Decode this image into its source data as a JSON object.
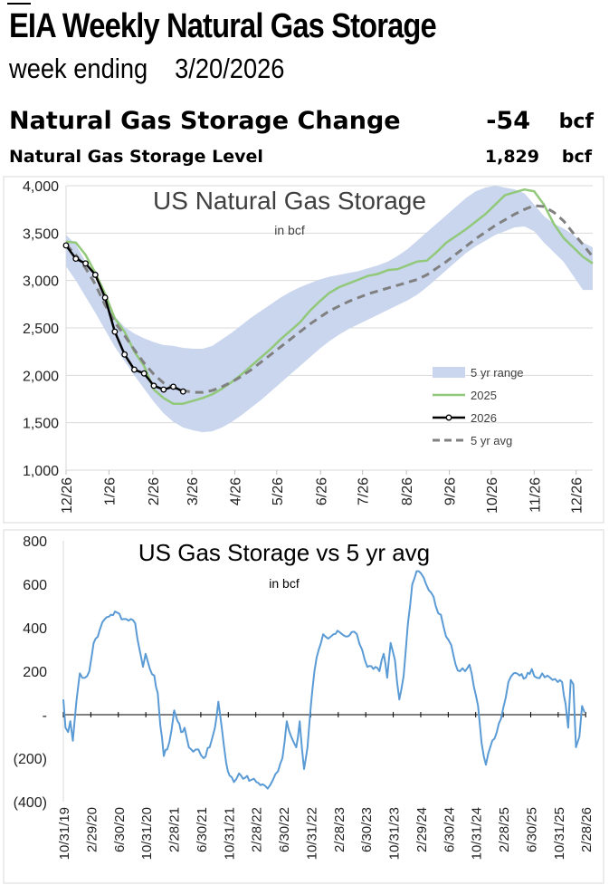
{
  "header": {
    "title": "EIA Weekly Natural Gas Storage",
    "week_label": "week ending",
    "week_date": "3/20/2026"
  },
  "summary": {
    "change_label": "Natural Gas Storage Change",
    "change_value": "-54",
    "change_unit": "bcf",
    "level_label": "Natural Gas Storage Level",
    "level_value": "1,829",
    "level_unit": "bcf"
  },
  "colors": {
    "range_fill": "#c9d6ee",
    "line_2025": "#92c87a",
    "line_2026": "#000000",
    "line_avg": "#808080",
    "line_diff": "#5b9bd5",
    "grid": "#d9d9d9"
  },
  "chart_data": [
    {
      "type": "line",
      "title": "US Natural Gas Storage",
      "subtitle": "in bcf",
      "legend_position": "right",
      "ylim": [
        1000,
        4000
      ],
      "yticks": [
        "1,000",
        "1,500",
        "2,000",
        "2,500",
        "3,000",
        "3,500",
        "4,000"
      ],
      "xlim_weeks": [
        0,
        54
      ],
      "xticks": [
        "12/26",
        "1/26",
        "2/26",
        "3/26",
        "4/26",
        "5/26",
        "6/26",
        "7/26",
        "8/26",
        "9/26",
        "10/26",
        "11/26",
        "12/26"
      ],
      "xtick_weeks": [
        0,
        4.4,
        8.9,
        12.9,
        17.3,
        21.6,
        26.1,
        30.4,
        34.9,
        39.3,
        43.6,
        48.0,
        52.3
      ],
      "series": [
        {
          "name": "5 yr range",
          "kind": "band",
          "weeks": [
            0,
            1,
            2,
            3,
            4,
            5,
            6,
            7,
            8,
            9,
            10,
            11,
            12,
            13,
            14,
            15,
            16,
            17,
            18,
            19,
            20,
            21,
            22,
            23,
            24,
            25,
            26,
            27,
            28,
            29,
            30,
            31,
            32,
            33,
            34,
            35,
            36,
            37,
            38,
            39,
            40,
            41,
            42,
            43,
            44,
            45,
            46,
            47,
            48,
            49,
            50,
            51,
            52,
            53,
            54
          ],
          "low": [
            3150,
            3000,
            2830,
            2660,
            2480,
            2300,
            2150,
            2000,
            1860,
            1720,
            1600,
            1510,
            1450,
            1420,
            1400,
            1410,
            1450,
            1510,
            1580,
            1660,
            1740,
            1830,
            1920,
            2010,
            2100,
            2190,
            2280,
            2360,
            2430,
            2490,
            2540,
            2590,
            2640,
            2690,
            2740,
            2790,
            2850,
            2930,
            3020,
            3110,
            3200,
            3290,
            3360,
            3420,
            3480,
            3520,
            3560,
            3570,
            3520,
            3400,
            3300,
            3200,
            3050,
            2900,
            2900
          ],
          "high": [
            3480,
            3380,
            3200,
            3000,
            2800,
            2620,
            2510,
            2440,
            2390,
            2350,
            2320,
            2310,
            2290,
            2280,
            2280,
            2310,
            2380,
            2450,
            2530,
            2610,
            2680,
            2750,
            2820,
            2880,
            2930,
            2970,
            3010,
            3040,
            3060,
            3080,
            3100,
            3130,
            3160,
            3200,
            3260,
            3330,
            3420,
            3510,
            3600,
            3690,
            3780,
            3870,
            3940,
            3980,
            4000,
            3980,
            3960,
            3920,
            3800,
            3680,
            3600,
            3550,
            3480,
            3400,
            3350
          ]
        },
        {
          "name": "2025",
          "kind": "line",
          "weeks": [
            0,
            1,
            2,
            3,
            4,
            5,
            6,
            7,
            8,
            9,
            10,
            11,
            12,
            13,
            14,
            15,
            16,
            17,
            18,
            19,
            20,
            21,
            22,
            23,
            24,
            25,
            26,
            27,
            28,
            29,
            30,
            31,
            32,
            33,
            34,
            35,
            36,
            37,
            38,
            39,
            40,
            41,
            42,
            43,
            44,
            45,
            46,
            47,
            48,
            49,
            50,
            51,
            52,
            53,
            54
          ],
          "values": [
            3410,
            3400,
            3270,
            3080,
            2860,
            2600,
            2460,
            2250,
            2100,
            1850,
            1760,
            1700,
            1700,
            1730,
            1760,
            1800,
            1860,
            1930,
            2010,
            2100,
            2190,
            2280,
            2380,
            2470,
            2560,
            2680,
            2780,
            2870,
            2930,
            2970,
            3010,
            3050,
            3070,
            3110,
            3120,
            3160,
            3200,
            3210,
            3300,
            3400,
            3470,
            3540,
            3620,
            3700,
            3800,
            3900,
            3930,
            3960,
            3940,
            3800,
            3600,
            3450,
            3350,
            3250,
            3180
          ]
        },
        {
          "name": "2026",
          "kind": "line-marker",
          "weeks": [
            0,
            1,
            2,
            3,
            4,
            5,
            6,
            7,
            8,
            9,
            10,
            11,
            12
          ],
          "values": [
            3370,
            3230,
            3180,
            3060,
            2820,
            2460,
            2220,
            2060,
            2020,
            1890,
            1850,
            1880,
            1829
          ]
        },
        {
          "name": "5 yr avg",
          "kind": "dashed",
          "weeks": [
            0,
            1,
            2,
            3,
            4,
            5,
            6,
            7,
            8,
            9,
            10,
            11,
            12,
            13,
            14,
            15,
            16,
            17,
            18,
            19,
            20,
            21,
            22,
            23,
            24,
            25,
            26,
            27,
            28,
            29,
            30,
            31,
            32,
            33,
            34,
            35,
            36,
            37,
            38,
            39,
            40,
            41,
            42,
            43,
            44,
            45,
            46,
            47,
            48,
            49,
            50,
            51,
            52,
            53,
            54
          ],
          "values": [
            3380,
            3270,
            3130,
            2960,
            2740,
            2560,
            2420,
            2270,
            2130,
            2010,
            1920,
            1870,
            1840,
            1820,
            1820,
            1840,
            1880,
            1930,
            1990,
            2060,
            2140,
            2220,
            2300,
            2380,
            2460,
            2540,
            2610,
            2680,
            2730,
            2780,
            2820,
            2860,
            2890,
            2920,
            2950,
            2980,
            3010,
            3060,
            3130,
            3200,
            3280,
            3360,
            3440,
            3510,
            3580,
            3640,
            3700,
            3750,
            3790,
            3780,
            3720,
            3630,
            3500,
            3380,
            3250
          ]
        }
      ]
    },
    {
      "type": "line",
      "title": "US Gas Storage vs 5 yr avg",
      "subtitle": "in bcf",
      "ylim": [
        -400,
        800
      ],
      "yticks": [
        "(400)",
        "(200)",
        "-",
        "200",
        "400",
        "600",
        "800"
      ],
      "xticks": [
        "10/31/19",
        "2/29/20",
        "6/30/20",
        "10/31/20",
        "2/28/21",
        "6/30/21",
        "10/31/21",
        "2/28/22",
        "6/30/22",
        "10/31/22",
        "2/28/23",
        "6/30/23",
        "10/31/23",
        "2/29/24",
        "6/30/24",
        "10/31/24",
        "2/28/25",
        "6/30/25",
        "10/31/25",
        "2/28/26"
      ],
      "series": [
        {
          "name": "",
          "points": [
            [
              0,
              70
            ],
            [
              0.25,
              -60
            ],
            [
              0.55,
              -80
            ],
            [
              0.8,
              -30
            ],
            [
              1.1,
              -120
            ],
            [
              1.5,
              60
            ],
            [
              1.9,
              190
            ],
            [
              2.5,
              170
            ],
            [
              3,
              200
            ],
            [
              3.5,
              330
            ],
            [
              4.2,
              390
            ],
            [
              4.8,
              440
            ],
            [
              5.5,
              460
            ],
            [
              6.2,
              470
            ],
            [
              7,
              440
            ],
            [
              7.8,
              440
            ],
            [
              8.3,
              420
            ],
            [
              8.8,
              300
            ],
            [
              9.2,
              220
            ],
            [
              9.5,
              280
            ],
            [
              10,
              210
            ],
            [
              10.5,
              180
            ],
            [
              10.9,
              100
            ],
            [
              11.2,
              -50
            ],
            [
              11.6,
              -190
            ],
            [
              12,
              -160
            ],
            [
              12.5,
              -70
            ],
            [
              12.8,
              20
            ],
            [
              13.2,
              -30
            ],
            [
              13.6,
              -80
            ],
            [
              14,
              -60
            ],
            [
              14.5,
              -150
            ],
            [
              15,
              -170
            ],
            [
              15.6,
              -160
            ],
            [
              16.2,
              -200
            ],
            [
              16.9,
              -150
            ],
            [
              17.5,
              -60
            ],
            [
              17.9,
              60
            ],
            [
              18.3,
              -60
            ],
            [
              18.8,
              -220
            ],
            [
              19.2,
              -280
            ],
            [
              19.7,
              -310
            ],
            [
              20.3,
              -270
            ],
            [
              21,
              -290
            ],
            [
              21.7,
              -300
            ],
            [
              22.3,
              -310
            ],
            [
              23,
              -320
            ],
            [
              23.6,
              -340
            ],
            [
              24.2,
              -300
            ],
            [
              24.8,
              -260
            ],
            [
              25.3,
              -200
            ],
            [
              25.8,
              -30
            ],
            [
              26.3,
              -100
            ],
            [
              26.9,
              -150
            ],
            [
              27.3,
              -30
            ],
            [
              27.8,
              -250
            ],
            [
              28.2,
              -150
            ],
            [
              28.6,
              50
            ],
            [
              29,
              200
            ],
            [
              29.5,
              300
            ],
            [
              30,
              370
            ],
            [
              30.6,
              350
            ],
            [
              31.2,
              370
            ],
            [
              31.9,
              380
            ],
            [
              32.6,
              360
            ],
            [
              33.3,
              380
            ],
            [
              33.9,
              370
            ],
            [
              34.5,
              300
            ],
            [
              35.1,
              220
            ],
            [
              35.8,
              210
            ],
            [
              36.5,
              200
            ],
            [
              37,
              280
            ],
            [
              37.4,
              170
            ],
            [
              37.8,
              330
            ],
            [
              38.3,
              250
            ],
            [
              38.8,
              70
            ],
            [
              39.3,
              180
            ],
            [
              39.8,
              420
            ],
            [
              40.3,
              600
            ],
            [
              40.8,
              660
            ],
            [
              41.3,
              650
            ],
            [
              41.9,
              600
            ],
            [
              42.5,
              560
            ],
            [
              43,
              500
            ],
            [
              43.6,
              460
            ],
            [
              44.2,
              360
            ],
            [
              44.8,
              320
            ],
            [
              45.3,
              230
            ],
            [
              45.8,
              200
            ],
            [
              46.4,
              200
            ],
            [
              46.9,
              230
            ],
            [
              47.4,
              130
            ],
            [
              47.9,
              40
            ],
            [
              48.3,
              -130
            ],
            [
              48.8,
              -230
            ],
            [
              49.3,
              -150
            ],
            [
              49.8,
              -110
            ],
            [
              50.3,
              -40
            ],
            [
              50.8,
              30
            ],
            [
              51.4,
              150
            ],
            [
              52,
              190
            ],
            [
              52.7,
              180
            ],
            [
              53.4,
              170
            ],
            [
              54.1,
              210
            ],
            [
              54.7,
              170
            ],
            [
              55.3,
              190
            ],
            [
              55.9,
              180
            ],
            [
              56.5,
              160
            ],
            [
              57.1,
              150
            ],
            [
              57.6,
              150
            ],
            [
              58,
              50
            ],
            [
              58.3,
              -60
            ],
            [
              58.6,
              160
            ],
            [
              58.9,
              140
            ],
            [
              59.2,
              -150
            ],
            [
              59.6,
              -100
            ],
            [
              59.9,
              40
            ],
            [
              60.2,
              10
            ]
          ]
        }
      ]
    }
  ]
}
